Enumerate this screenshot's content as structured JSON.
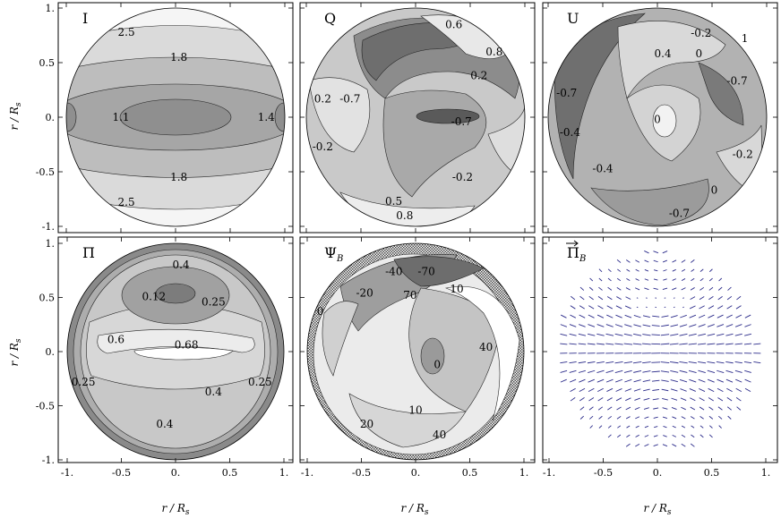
{
  "figure": {
    "y_axis_label_top": "r / R_s",
    "y_axis_label_bottom": "r / R_s",
    "x_axis_labels": [
      "r / R_s",
      "r / R_s",
      "r / R_s"
    ]
  },
  "chart_data": [
    {
      "type": "contour",
      "panel_label": "I",
      "xlim": [
        -1.05,
        1.05
      ],
      "ylim": [
        -1.05,
        1.05
      ],
      "xticks": [
        -1.0,
        -0.5,
        0.0,
        0.5,
        1.0
      ],
      "yticks": [
        -1.0,
        -0.5,
        0.0,
        0.5,
        1.0
      ],
      "contour_labels": [
        {
          "text": "2.5",
          "x": -0.45,
          "y": 0.78
        },
        {
          "text": "1.8",
          "x": 0.03,
          "y": 0.55
        },
        {
          "text": "1.1",
          "x": -0.5,
          "y": 0.0
        },
        {
          "text": "1.4",
          "x": 0.83,
          "y": 0.0
        },
        {
          "text": "1.8",
          "x": 0.03,
          "y": -0.55
        },
        {
          "text": "2.5",
          "x": -0.45,
          "y": -0.78
        }
      ]
    },
    {
      "type": "contour",
      "panel_label": "Q",
      "xlim": [
        -1.05,
        1.05
      ],
      "ylim": [
        -1.05,
        1.05
      ],
      "xticks": [
        -1.0,
        -0.5,
        0.0,
        0.5,
        1.0
      ],
      "yticks": [
        -1.0,
        -0.5,
        0.0,
        0.5,
        1.0
      ],
      "contour_labels": [
        {
          "text": "0.6",
          "x": 0.35,
          "y": 0.85
        },
        {
          "text": "0.8",
          "x": 0.72,
          "y": 0.6
        },
        {
          "text": "0.2",
          "x": 0.58,
          "y": 0.38
        },
        {
          "text": "0.2",
          "x": -0.85,
          "y": 0.17
        },
        {
          "text": "-0.7",
          "x": -0.6,
          "y": 0.17
        },
        {
          "text": "-0.7",
          "x": 0.42,
          "y": -0.04
        },
        {
          "text": "-0.2",
          "x": -0.85,
          "y": -0.27
        },
        {
          "text": "-0.2",
          "x": 0.43,
          "y": -0.55
        },
        {
          "text": "0.5",
          "x": -0.2,
          "y": -0.77
        },
        {
          "text": "0.8",
          "x": -0.1,
          "y": -0.9
        }
      ]
    },
    {
      "type": "contour",
      "panel_label": "U",
      "xlim": [
        -1.05,
        1.05
      ],
      "ylim": [
        -1.05,
        1.05
      ],
      "xticks": [
        -1.0,
        -0.5,
        0.0,
        0.5,
        1.0
      ],
      "yticks": [
        -1.0,
        -0.5,
        0.0,
        0.5,
        1.0
      ],
      "contour_labels": [
        {
          "text": "-0.2",
          "x": 0.4,
          "y": 0.77
        },
        {
          "text": "1",
          "x": 0.8,
          "y": 0.72
        },
        {
          "text": "0.4",
          "x": 0.05,
          "y": 0.58
        },
        {
          "text": "0",
          "x": 0.38,
          "y": 0.58
        },
        {
          "text": "-0.7",
          "x": -0.83,
          "y": 0.22
        },
        {
          "text": "-0.7",
          "x": 0.73,
          "y": 0.33
        },
        {
          "text": "0",
          "x": 0.0,
          "y": -0.02
        },
        {
          "text": "-0.4",
          "x": -0.8,
          "y": -0.14
        },
        {
          "text": "-0.4",
          "x": -0.5,
          "y": -0.47
        },
        {
          "text": "-0.2",
          "x": 0.78,
          "y": -0.34
        },
        {
          "text": "0",
          "x": 0.52,
          "y": -0.67
        },
        {
          "text": "-0.7",
          "x": 0.2,
          "y": -0.88
        }
      ]
    },
    {
      "type": "contour",
      "panel_label": "Π",
      "xlim": [
        -1.05,
        1.05
      ],
      "ylim": [
        -1.05,
        1.05
      ],
      "xticks": [
        -1.0,
        -0.5,
        0.0,
        0.5,
        1.0
      ],
      "yticks": [
        -1.0,
        -0.5,
        0.0,
        0.5,
        1.0
      ],
      "contour_labels": [
        {
          "text": "0.4",
          "x": 0.05,
          "y": 0.8
        },
        {
          "text": "0.12",
          "x": -0.2,
          "y": 0.51
        },
        {
          "text": "0.25",
          "x": 0.35,
          "y": 0.46
        },
        {
          "text": "0.6",
          "x": -0.55,
          "y": 0.11
        },
        {
          "text": "0.68",
          "x": 0.1,
          "y": 0.06
        },
        {
          "text": "0.25",
          "x": -0.85,
          "y": -0.28
        },
        {
          "text": "0.4",
          "x": 0.35,
          "y": -0.37
        },
        {
          "text": "0.25",
          "x": 0.78,
          "y": -0.28
        },
        {
          "text": "0.4",
          "x": -0.1,
          "y": -0.67
        }
      ]
    },
    {
      "type": "contour",
      "panel_label": "Ψ_B",
      "xlim": [
        -1.05,
        1.05
      ],
      "ylim": [
        -1.05,
        1.05
      ],
      "xticks": [
        -1.0,
        -0.5,
        0.0,
        0.5,
        1.0
      ],
      "yticks": [
        -1.0,
        -0.5,
        0.0,
        0.5,
        1.0
      ],
      "contour_labels": [
        {
          "text": "-40",
          "x": -0.2,
          "y": 0.74
        },
        {
          "text": "-70",
          "x": 0.1,
          "y": 0.74
        },
        {
          "text": "-20",
          "x": -0.47,
          "y": 0.54
        },
        {
          "text": "70",
          "x": -0.05,
          "y": 0.52
        },
        {
          "text": "10",
          "x": 0.38,
          "y": 0.58
        },
        {
          "text": "0",
          "x": -0.88,
          "y": 0.37
        },
        {
          "text": "40",
          "x": 0.65,
          "y": 0.04
        },
        {
          "text": "0",
          "x": 0.2,
          "y": -0.12
        },
        {
          "text": "10",
          "x": 0.0,
          "y": -0.54
        },
        {
          "text": "20",
          "x": -0.45,
          "y": -0.67
        },
        {
          "text": "40",
          "x": 0.22,
          "y": -0.77
        }
      ]
    },
    {
      "type": "vector_field",
      "panel_label": "Π⃗_B",
      "xlim": [
        -1.05,
        1.05
      ],
      "ylim": [
        -1.05,
        1.05
      ],
      "xticks": [
        -1.0,
        -0.5,
        0.0,
        0.5,
        1.0
      ],
      "yticks": [
        -1.0,
        -0.5,
        0.0,
        0.5,
        1.0
      ],
      "vector_color": "#2b2b8a"
    }
  ]
}
